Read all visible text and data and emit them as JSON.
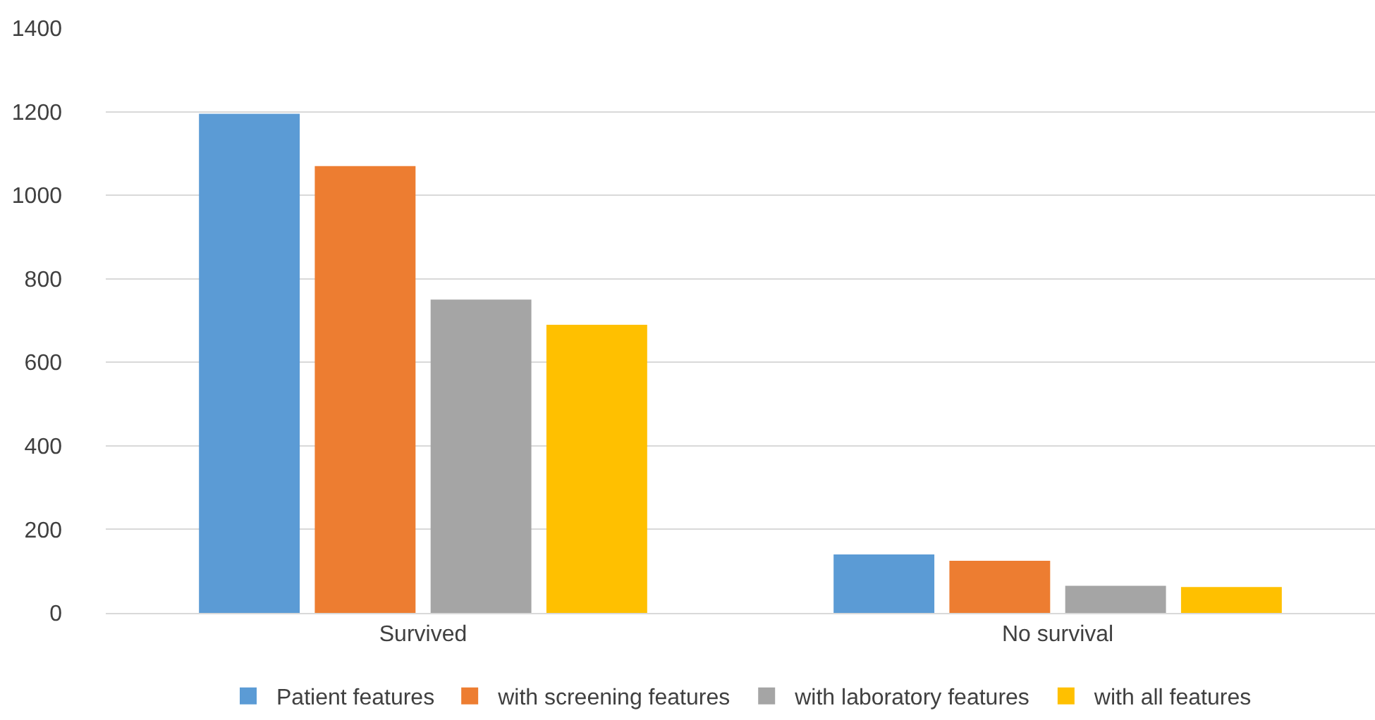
{
  "chart_data": {
    "type": "bar",
    "categories": [
      "Survived",
      "No survival"
    ],
    "series": [
      {
        "name": "Patient features",
        "color": "#5b9bd5",
        "values": [
          1195,
          140
        ]
      },
      {
        "name": "with screening features",
        "color": "#ed7d31",
        "values": [
          1070,
          125
        ]
      },
      {
        "name": "with laboratory features",
        "color": "#a5a5a5",
        "values": [
          750,
          65
        ]
      },
      {
        "name": "with all features",
        "color": "#ffc000",
        "values": [
          690,
          62
        ]
      }
    ],
    "ylim": [
      0,
      1400
    ],
    "yticks": [
      0,
      200,
      400,
      600,
      800,
      1000,
      1200,
      1400
    ],
    "grid": "y",
    "legend": "bottom"
  }
}
